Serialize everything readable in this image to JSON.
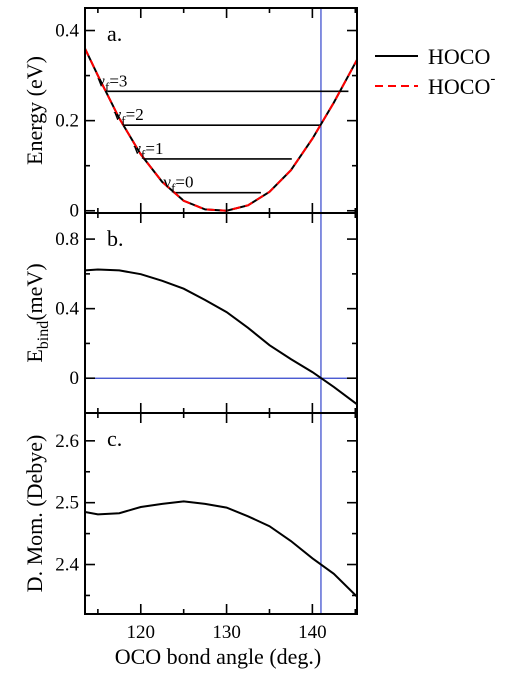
{
  "legend": {
    "entries": [
      {
        "label": "HOCO",
        "sup": "",
        "color": "#000000",
        "dash": "solid"
      },
      {
        "label": "HOCO",
        "sup": "-",
        "color": "#ff0000",
        "dash": "dashed"
      }
    ]
  },
  "x_axis": {
    "label": "OCO bond angle (deg.)",
    "xlim": [
      113.5,
      145.2
    ],
    "ticks": [
      120,
      130,
      140
    ],
    "tick_labels": [
      "120",
      "130",
      "140"
    ],
    "minor_ticks": [
      115,
      125,
      135,
      145
    ]
  },
  "chart_data": [
    {
      "type": "line",
      "panel_tag": "a.",
      "ylabel": "Energy (eV)",
      "ylim": [
        -0.005,
        0.45
      ],
      "yticks": [
        0,
        0.2,
        0.4
      ],
      "ytick_labels": [
        "0",
        "0.2",
        "0.4"
      ],
      "series": [
        {
          "name": "HOCO",
          "color": "#000000",
          "dash": "solid",
          "x": [
            113.5,
            115,
            117.5,
            120,
            122.5,
            125,
            127.5,
            130,
            132.5,
            135,
            137.5,
            140,
            142.5,
            145.2
          ],
          "y": [
            0.36,
            0.3,
            0.205,
            0.125,
            0.064,
            0.022,
            0.003,
            0.0,
            0.012,
            0.042,
            0.09,
            0.16,
            0.24,
            0.335
          ]
        },
        {
          "name": "HOCO-",
          "color": "#ff0000",
          "dash": "dashed",
          "x": [
            113.5,
            115,
            117.5,
            120,
            122.5,
            125,
            127.5,
            130,
            132.5,
            135,
            137.5,
            140,
            142.5,
            145.2
          ],
          "y": [
            0.36,
            0.3,
            0.205,
            0.125,
            0.064,
            0.022,
            0.003,
            0.0,
            0.012,
            0.042,
            0.09,
            0.16,
            0.24,
            0.335
          ]
        }
      ],
      "levels": [
        {
          "label": "ν",
          "sub": "f",
          "suffix": "=0",
          "energy": 0.04,
          "x_range": [
            123.8,
            134.0
          ]
        },
        {
          "label": "ν",
          "sub": "f",
          "suffix": "=1",
          "energy": 0.115,
          "x_range": [
            120.3,
            137.6
          ]
        },
        {
          "label": "ν",
          "sub": "f",
          "suffix": "=2",
          "energy": 0.19,
          "x_range": [
            118.0,
            140.9
          ]
        },
        {
          "label": "ν",
          "sub": "f",
          "suffix": "=3",
          "energy": 0.265,
          "x_range": [
            116.1,
            144.2
          ]
        }
      ],
      "vline_x": 141.0
    },
    {
      "type": "line",
      "panel_tag": "b.",
      "ylabel": "E",
      "ylabel_sub": "bind",
      "ylabel_suffix": "(meV)",
      "ylim": [
        -0.2,
        0.95
      ],
      "yticks": [
        0,
        0.4,
        0.8
      ],
      "ytick_labels": [
        "0",
        "0.4",
        "0.8"
      ],
      "series": [
        {
          "name": "HOCO",
          "color": "#000000",
          "dash": "solid",
          "x": [
            113.5,
            115,
            117.5,
            120,
            122.5,
            125,
            127.5,
            130,
            132.5,
            135,
            137.5,
            140,
            142.5,
            145.2
          ],
          "y": [
            0.62,
            0.625,
            0.62,
            0.598,
            0.56,
            0.515,
            0.45,
            0.38,
            0.29,
            0.19,
            0.11,
            0.035,
            -0.05,
            -0.15
          ]
        }
      ],
      "hline_y": 0,
      "vline_x": 141.0
    },
    {
      "type": "line",
      "panel_tag": "c.",
      "ylabel": "D. Mom. (Debye)",
      "ylim": [
        2.32,
        2.645
      ],
      "yticks": [
        2.4,
        2.5,
        2.6
      ],
      "ytick_labels": [
        "2.4",
        "2.5",
        "2.6"
      ],
      "series": [
        {
          "name": "HOCO",
          "color": "#000000",
          "dash": "solid",
          "x": [
            113.5,
            115,
            117.5,
            120,
            122.5,
            125,
            127.5,
            130,
            132.5,
            135,
            137.5,
            140,
            142.5,
            145.2
          ],
          "y": [
            2.485,
            2.481,
            2.483,
            2.493,
            2.498,
            2.502,
            2.498,
            2.492,
            2.478,
            2.462,
            2.438,
            2.41,
            2.385,
            2.348
          ]
        }
      ],
      "vline_x": 141.0
    }
  ],
  "colors": {
    "axes": "#000000",
    "vline": "#3344cc",
    "hline": "#3344cc"
  }
}
